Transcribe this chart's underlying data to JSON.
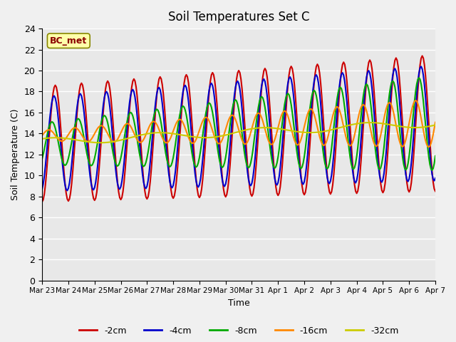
{
  "title": "Soil Temperatures Set C",
  "xlabel": "Time",
  "ylabel": "Soil Temperature (C)",
  "ylim": [
    0,
    24
  ],
  "yticks": [
    0,
    2,
    4,
    6,
    8,
    10,
    12,
    14,
    16,
    18,
    20,
    22,
    24
  ],
  "xtick_labels": [
    "Mar 23",
    "Mar 24",
    "Mar 25",
    "Mar 26",
    "Mar 27",
    "Mar 28",
    "Mar 29",
    "Mar 30",
    "Mar 31",
    "Apr 1",
    "Apr 2",
    "Apr 3",
    "Apr 4",
    "Apr 5",
    "Apr 6",
    "Apr 7"
  ],
  "series": {
    "-2cm": {
      "color": "#cc0000",
      "linewidth": 1.5
    },
    "-4cm": {
      "color": "#0000cc",
      "linewidth": 1.5
    },
    "-8cm": {
      "color": "#00aa00",
      "linewidth": 1.5
    },
    "-16cm": {
      "color": "#ff8800",
      "linewidth": 1.5
    },
    "-32cm": {
      "color": "#cccc00",
      "linewidth": 1.5
    }
  },
  "station_label": "BC_met",
  "background_color": "#e8e8e8",
  "fig_bg_color": "#f0f0f0",
  "figsize": [
    6.4,
    4.8
  ],
  "dpi": 100
}
